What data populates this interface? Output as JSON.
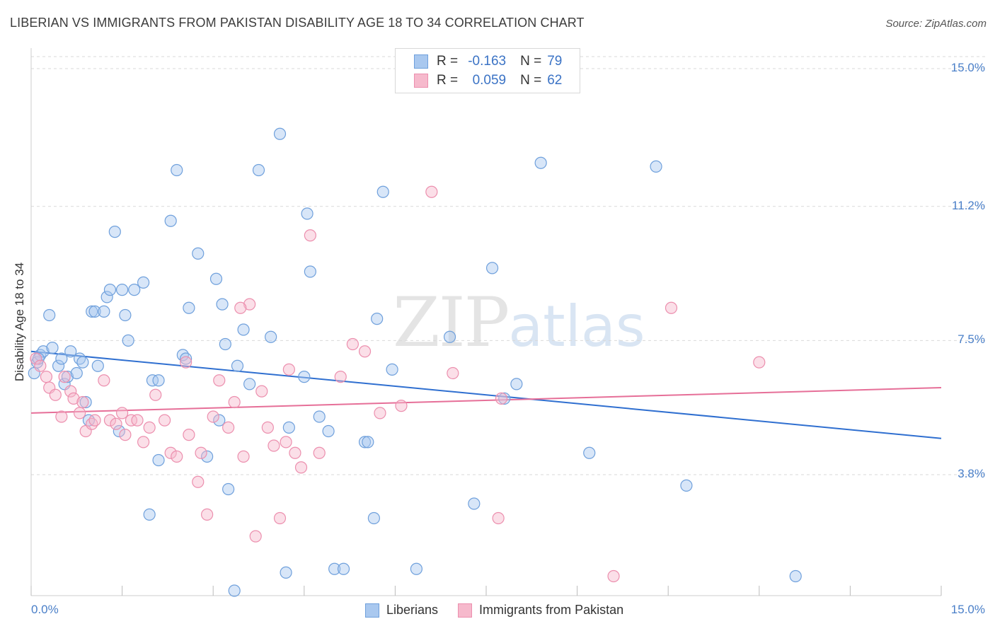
{
  "title": "LIBERIAN VS IMMIGRANTS FROM PAKISTAN DISABILITY AGE 18 TO 34 CORRELATION CHART",
  "source": "Source: ZipAtlas.com",
  "watermark": {
    "zip": "ZIP",
    "atlas": "atlas"
  },
  "colors": {
    "blue_fill": "#a9c8ef",
    "blue_stroke": "#6fa0dc",
    "blue_line": "#2f6fd0",
    "pink_fill": "#f6b9cc",
    "pink_stroke": "#ec8fae",
    "pink_line": "#e66f98",
    "grid": "#d9d9d9",
    "tick_text": "#4a7fc8"
  },
  "legend": {
    "rows": [
      {
        "r_label": "R =",
        "r_value": "-0.163",
        "n_label": "N =",
        "n_value": "79"
      },
      {
        "r_label": "R =",
        "r_value": "0.059",
        "n_label": "N =",
        "n_value": "62"
      }
    ]
  },
  "bottom_legend": [
    "Liberians",
    "Immigrants from Pakistan"
  ],
  "chart_data": {
    "type": "scatter",
    "title": "LIBERIAN VS IMMIGRANTS FROM PAKISTAN DISABILITY AGE 18 TO 34 CORRELATION CHART",
    "xlabel": "",
    "ylabel": "Disability Age 18 to 34",
    "xlim": [
      0,
      15
    ],
    "ylim": [
      0,
      15.5
    ],
    "x_tick_labels": [
      "0.0%",
      "15.0%"
    ],
    "y_ticks": [
      3.8,
      7.5,
      11.2,
      15.0
    ],
    "y_tick_labels": [
      "3.8%",
      "7.5%",
      "11.2%",
      "15.0%"
    ],
    "grid": "horizontal dashed",
    "legend_placement": "top-center",
    "series": [
      {
        "name": "Liberians",
        "r": -0.163,
        "n": 79,
        "trend": {
          "x": [
            0.0,
            15.0
          ],
          "y": [
            7.2,
            4.8
          ]
        },
        "points": [
          [
            0.1,
            6.9
          ],
          [
            0.15,
            7.1
          ],
          [
            0.2,
            7.2
          ],
          [
            0.3,
            8.2
          ],
          [
            0.35,
            7.3
          ],
          [
            0.45,
            6.8
          ],
          [
            0.5,
            7.0
          ],
          [
            0.55,
            6.3
          ],
          [
            0.6,
            6.5
          ],
          [
            0.65,
            7.2
          ],
          [
            0.75,
            6.6
          ],
          [
            0.8,
            7.0
          ],
          [
            0.85,
            6.9
          ],
          [
            0.9,
            5.8
          ],
          [
            0.95,
            5.3
          ],
          [
            1.1,
            6.8
          ],
          [
            1.0,
            8.3
          ],
          [
            1.05,
            8.3
          ],
          [
            1.2,
            8.3
          ],
          [
            1.25,
            8.7
          ],
          [
            1.3,
            8.9
          ],
          [
            1.38,
            10.5
          ],
          [
            1.5,
            8.9
          ],
          [
            1.55,
            8.2
          ],
          [
            1.6,
            7.5
          ],
          [
            1.7,
            8.9
          ],
          [
            1.85,
            9.1
          ],
          [
            1.95,
            2.7
          ],
          [
            2.0,
            6.4
          ],
          [
            2.1,
            6.4
          ],
          [
            2.1,
            4.2
          ],
          [
            2.3,
            10.8
          ],
          [
            2.4,
            12.2
          ],
          [
            2.5,
            7.1
          ],
          [
            2.55,
            7.0
          ],
          [
            2.6,
            8.4
          ],
          [
            2.75,
            9.9
          ],
          [
            2.9,
            4.3
          ],
          [
            3.1,
            5.3
          ],
          [
            3.15,
            8.5
          ],
          [
            3.2,
            7.4
          ],
          [
            3.25,
            3.4
          ],
          [
            3.35,
            0.6
          ],
          [
            3.4,
            6.8
          ],
          [
            3.5,
            7.8
          ],
          [
            3.6,
            6.3
          ],
          [
            3.75,
            12.2
          ],
          [
            3.95,
            7.6
          ],
          [
            4.1,
            13.2
          ],
          [
            4.2,
            1.1
          ],
          [
            4.25,
            5.1
          ],
          [
            4.5,
            6.5
          ],
          [
            4.55,
            11.0
          ],
          [
            4.6,
            9.4
          ],
          [
            4.9,
            5.0
          ],
          [
            5.0,
            1.2
          ],
          [
            5.15,
            1.2
          ],
          [
            5.5,
            4.7
          ],
          [
            5.55,
            4.7
          ],
          [
            5.65,
            2.6
          ],
          [
            5.7,
            8.1
          ],
          [
            5.8,
            11.6
          ],
          [
            5.95,
            6.7
          ],
          [
            6.35,
            1.2
          ],
          [
            6.9,
            7.6
          ],
          [
            7.3,
            3.0
          ],
          [
            7.6,
            9.5
          ],
          [
            7.8,
            5.9
          ],
          [
            8.0,
            6.3
          ],
          [
            8.4,
            12.4
          ],
          [
            9.2,
            4.4
          ],
          [
            10.3,
            12.3
          ],
          [
            10.8,
            3.5
          ],
          [
            12.6,
            1.0
          ],
          [
            0.05,
            6.6
          ],
          [
            0.12,
            7.0
          ],
          [
            3.05,
            9.2
          ],
          [
            1.45,
            5.0
          ],
          [
            4.75,
            5.4
          ]
        ]
      },
      {
        "name": "Immigrants from Pakistan",
        "r": 0.059,
        "n": 62,
        "trend": {
          "x": [
            0.0,
            15.0
          ],
          "y": [
            5.5,
            6.2
          ]
        },
        "points": [
          [
            0.08,
            7.0
          ],
          [
            0.15,
            6.8
          ],
          [
            0.25,
            6.5
          ],
          [
            0.3,
            6.2
          ],
          [
            0.4,
            6.0
          ],
          [
            0.5,
            5.4
          ],
          [
            0.55,
            6.5
          ],
          [
            0.65,
            6.1
          ],
          [
            0.7,
            5.9
          ],
          [
            0.8,
            5.5
          ],
          [
            0.85,
            5.8
          ],
          [
            0.9,
            5.0
          ],
          [
            1.0,
            5.2
          ],
          [
            1.05,
            5.3
          ],
          [
            1.2,
            6.4
          ],
          [
            1.3,
            5.3
          ],
          [
            1.4,
            5.2
          ],
          [
            1.5,
            5.5
          ],
          [
            1.55,
            4.9
          ],
          [
            1.65,
            5.3
          ],
          [
            1.75,
            5.3
          ],
          [
            1.85,
            4.7
          ],
          [
            1.95,
            5.1
          ],
          [
            2.05,
            6.0
          ],
          [
            2.2,
            5.3
          ],
          [
            2.3,
            4.4
          ],
          [
            2.4,
            4.3
          ],
          [
            2.55,
            6.9
          ],
          [
            2.6,
            4.9
          ],
          [
            2.75,
            3.6
          ],
          [
            2.8,
            4.4
          ],
          [
            2.9,
            2.7
          ],
          [
            3.0,
            5.4
          ],
          [
            3.1,
            6.4
          ],
          [
            3.25,
            5.1
          ],
          [
            3.35,
            5.8
          ],
          [
            3.5,
            4.3
          ],
          [
            3.6,
            8.5
          ],
          [
            3.7,
            2.1
          ],
          [
            3.8,
            6.1
          ],
          [
            3.9,
            5.1
          ],
          [
            4.0,
            4.6
          ],
          [
            4.1,
            2.6
          ],
          [
            4.2,
            4.7
          ],
          [
            4.25,
            6.7
          ],
          [
            4.35,
            4.4
          ],
          [
            4.45,
            4.0
          ],
          [
            4.6,
            10.4
          ],
          [
            4.75,
            4.4
          ],
          [
            5.1,
            6.5
          ],
          [
            5.3,
            7.4
          ],
          [
            5.5,
            7.2
          ],
          [
            5.75,
            5.5
          ],
          [
            6.1,
            5.7
          ],
          [
            6.6,
            11.6
          ],
          [
            6.95,
            6.6
          ],
          [
            7.7,
            2.6
          ],
          [
            7.75,
            5.9
          ],
          [
            3.45,
            8.4
          ],
          [
            10.55,
            8.4
          ],
          [
            12.0,
            6.9
          ],
          [
            9.6,
            1.0
          ]
        ]
      }
    ]
  }
}
